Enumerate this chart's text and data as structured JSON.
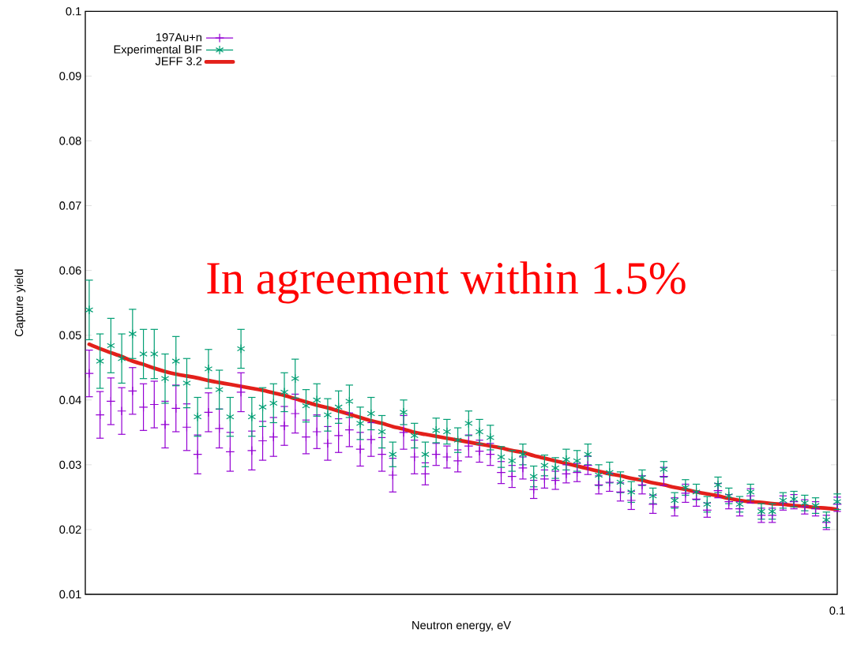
{
  "chart_data": {
    "type": "scatter",
    "xlabel": "Neutron energy, eV",
    "ylabel": "Capture yield",
    "legend": "top left",
    "ylim": [
      0.01,
      0.1
    ],
    "yticks": [
      0.01,
      0.02,
      0.03,
      0.04,
      0.05,
      0.06,
      0.07,
      0.08,
      0.09,
      0.1
    ],
    "categories": [
      null,
      null,
      null,
      null,
      null,
      null,
      null,
      null,
      null,
      null,
      null,
      null,
      null,
      null,
      null,
      null,
      null,
      null,
      null,
      null,
      null,
      null,
      null,
      null,
      null,
      null,
      null,
      null,
      null,
      null,
      null,
      null,
      null,
      null,
      null,
      null,
      null,
      null,
      null,
      null,
      null,
      null,
      null,
      null,
      null,
      null,
      null,
      null,
      null,
      null,
      null,
      null,
      null,
      null,
      null,
      null,
      null,
      null,
      null,
      null,
      null,
      null,
      null,
      null,
      null,
      null,
      null,
      null,
      null,
      null
    ],
    "series": [
      {
        "name": "197Au+n",
        "marker": "cross",
        "color": "#9400d3",
        "values": [
          0.0441,
          0.0377,
          0.0398,
          0.0383,
          0.0414,
          0.0389,
          0.0393,
          0.0362,
          0.0387,
          0.0358,
          0.0316,
          0.0381,
          0.0356,
          0.032,
          0.0412,
          0.0322,
          0.0337,
          0.0343,
          0.036,
          0.0379,
          0.0343,
          0.0351,
          0.0333,
          0.0345,
          0.0354,
          0.0324,
          0.0339,
          0.0316,
          0.0284,
          0.035,
          0.0312,
          0.0286,
          0.0316,
          0.0312,
          0.0306,
          0.0329,
          0.0321,
          0.0316,
          0.0288,
          0.0282,
          0.0295,
          0.0262,
          0.0278,
          0.0276,
          0.0286,
          0.0288,
          0.0299,
          0.0269,
          0.0273,
          0.0258,
          0.0245,
          0.0269,
          0.0239,
          0.0282,
          0.0235,
          0.0256,
          0.0247,
          0.023,
          0.026,
          0.0243,
          0.0232,
          0.0252,
          0.0222,
          0.0222,
          0.0241,
          0.0243,
          0.0235,
          0.0232,
          0.0211,
          0.0239
        ],
        "errors": [
          0.0036,
          0.0036,
          0.0036,
          0.0036,
          0.0036,
          0.0036,
          0.0036,
          0.0036,
          0.0036,
          0.0036,
          0.003,
          0.003,
          0.003,
          0.003,
          0.003,
          0.003,
          0.003,
          0.003,
          0.003,
          0.003,
          0.0026,
          0.0026,
          0.0026,
          0.0026,
          0.0026,
          0.0026,
          0.0026,
          0.0026,
          0.0026,
          0.0026,
          0.0026,
          0.0017,
          0.0017,
          0.0017,
          0.0017,
          0.0017,
          0.0017,
          0.0017,
          0.0017,
          0.0017,
          0.0017,
          0.0014,
          0.0014,
          0.0014,
          0.0014,
          0.0014,
          0.0014,
          0.0014,
          0.0014,
          0.0014,
          0.0014,
          0.0014,
          0.0014,
          0.0014,
          0.0014,
          0.0014,
          0.0011,
          0.0011,
          0.0011,
          0.0011,
          0.0011,
          0.0011,
          0.0011,
          0.0011,
          0.0011,
          0.0011,
          0.0011,
          0.0011,
          0.0011,
          0.0011
        ]
      },
      {
        "name": "Experimental BIF",
        "marker": "cross",
        "color": "#009e73",
        "values": [
          0.0539,
          0.046,
          0.0484,
          0.0464,
          0.0502,
          0.0471,
          0.0471,
          0.0433,
          0.046,
          0.0426,
          0.0374,
          0.0448,
          0.0416,
          0.0374,
          0.0479,
          0.0374,
          0.0389,
          0.0395,
          0.0412,
          0.0433,
          0.0391,
          0.04,
          0.0377,
          0.0389,
          0.0398,
          0.0364,
          0.0379,
          0.0351,
          0.0316,
          0.0381,
          0.0345,
          0.0316,
          0.0353,
          0.0351,
          0.0338,
          0.0364,
          0.0351,
          0.0342,
          0.0312,
          0.0306,
          0.0316,
          0.0282,
          0.0299,
          0.0295,
          0.0308,
          0.0306,
          0.0316,
          0.0284,
          0.0288,
          0.0273,
          0.0258,
          0.028,
          0.0252,
          0.0293,
          0.0245,
          0.0265,
          0.0258,
          0.0239,
          0.0269,
          0.0252,
          0.0239,
          0.0258,
          0.0228,
          0.0228,
          0.0245,
          0.0247,
          0.0241,
          0.0237,
          0.0215,
          0.0243
        ],
        "errors": [
          0.0046,
          0.0042,
          0.0042,
          0.0038,
          0.0038,
          0.0038,
          0.0038,
          0.0038,
          0.0038,
          0.0038,
          0.003,
          0.003,
          0.003,
          0.003,
          0.003,
          0.003,
          0.003,
          0.003,
          0.003,
          0.003,
          0.0025,
          0.0025,
          0.0025,
          0.0025,
          0.0025,
          0.0025,
          0.0025,
          0.0025,
          0.0019,
          0.0019,
          0.0019,
          0.0019,
          0.0019,
          0.0019,
          0.0019,
          0.0019,
          0.0019,
          0.0019,
          0.0016,
          0.0016,
          0.0016,
          0.0016,
          0.0016,
          0.0016,
          0.0016,
          0.0016,
          0.0016,
          0.0016,
          0.0016,
          0.0016,
          0.0016,
          0.0012,
          0.0012,
          0.0012,
          0.0012,
          0.0012,
          0.0012,
          0.0012,
          0.0012,
          0.0012,
          0.0012,
          0.0012,
          0.0012,
          0.0012,
          0.0012,
          0.0012,
          0.0012,
          0.0012,
          0.0012,
          0.0012
        ]
      },
      {
        "name": "JEFF 3.2",
        "type": "line",
        "marker": "none",
        "color": "#e3201b",
        "values": [
          0.0486,
          0.0479,
          0.0473,
          0.0467,
          0.046,
          0.0455,
          0.0449,
          0.0444,
          0.044,
          0.0437,
          0.0434,
          0.043,
          0.0427,
          0.0424,
          0.0421,
          0.0418,
          0.0415,
          0.0411,
          0.0407,
          0.0402,
          0.0397,
          0.0392,
          0.0388,
          0.0383,
          0.0378,
          0.0373,
          0.0368,
          0.0364,
          0.0359,
          0.0355,
          0.035,
          0.0347,
          0.0344,
          0.0341,
          0.0338,
          0.0335,
          0.0332,
          0.0329,
          0.0326,
          0.0322,
          0.0319,
          0.0314,
          0.031,
          0.0306,
          0.0302,
          0.0298,
          0.0294,
          0.029,
          0.0286,
          0.0283,
          0.0279,
          0.0276,
          0.0272,
          0.0269,
          0.0265,
          0.0262,
          0.0258,
          0.0255,
          0.0252,
          0.0248,
          0.0245,
          0.0243,
          0.0242,
          0.024,
          0.0239,
          0.0237,
          0.0236,
          0.0234,
          0.0233,
          0.0231
        ]
      }
    ],
    "annotations": [
      "In agreement within 1.5%",
      "0.1"
    ]
  }
}
